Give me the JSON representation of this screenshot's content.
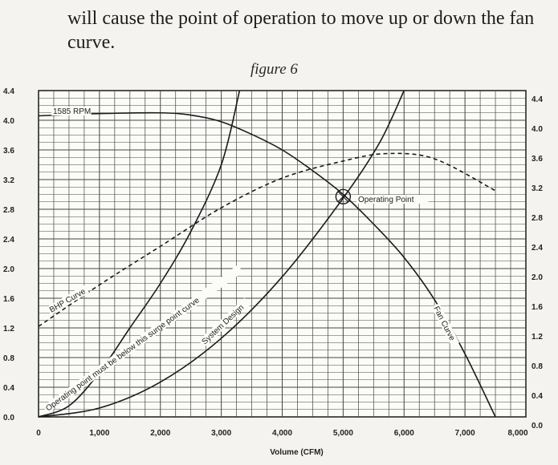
{
  "intro_text": "will cause the point of operation to move up or down the fan curve.",
  "figure_caption": "figure 6",
  "chart_data": {
    "type": "line",
    "xlabel": "Volume (CFM)",
    "ylabel": "",
    "xlim": [
      0,
      8000
    ],
    "ylim": [
      0,
      4.4
    ],
    "grid": true,
    "x_ticks": [
      0,
      1000,
      2000,
      3000,
      4000,
      5000,
      6000,
      7000,
      8000
    ],
    "x_tick_labels": [
      "0",
      "1,000",
      "2,000",
      "3,000",
      "4,000",
      "5,000",
      "6,000",
      "7,000",
      "8,000"
    ],
    "y_ticks": [
      0,
      0.4,
      0.8,
      1.2,
      1.6,
      2.0,
      2.4,
      2.8,
      3.2,
      3.6,
      4.0,
      4.4
    ],
    "y_tick_labels_left": [
      "0.0",
      "0.4",
      "0.8",
      "1.2",
      "1.6",
      "2.0",
      "2.4",
      "2.8",
      "3.2",
      "3.6",
      "4.0",
      "4.4"
    ],
    "y_tick_labels_right": [
      "0.0",
      "0.4",
      "0.8",
      "1.2",
      "1.6",
      "2.0",
      "2.4",
      "2.8",
      "3.2",
      "3.6",
      "4.0",
      "4.4"
    ],
    "series": [
      {
        "name": "Fan Curve",
        "style": "solid",
        "x": [
          0,
          1000,
          2000,
          2500,
          3000,
          3500,
          4000,
          4500,
          5000,
          5500,
          6000,
          6500,
          7000,
          7500
        ],
        "y": [
          4.06,
          4.09,
          4.1,
          4.07,
          3.98,
          3.81,
          3.6,
          3.32,
          3.0,
          2.6,
          2.15,
          1.58,
          0.85,
          0.0
        ]
      },
      {
        "name": "System Design",
        "style": "solid",
        "x": [
          0,
          1000,
          2000,
          3000,
          4000,
          5000,
          5600,
          6000
        ],
        "y": [
          0.0,
          0.12,
          0.47,
          1.06,
          1.89,
          2.95,
          3.7,
          4.4
        ]
      },
      {
        "name": "Operating point must be below this surge point curve",
        "style": "solid",
        "x": [
          0,
          500,
          1000,
          1500,
          2000,
          2500,
          3000,
          3300
        ],
        "y": [
          0.0,
          0.15,
          0.6,
          1.2,
          1.8,
          2.5,
          3.4,
          4.4
        ]
      },
      {
        "name": "BHP Curve",
        "style": "dashed",
        "x": [
          0,
          1000,
          2000,
          3000,
          4000,
          5000,
          5700,
          6500,
          7500
        ],
        "y": [
          1.22,
          1.78,
          2.3,
          2.82,
          3.22,
          3.45,
          3.55,
          3.48,
          3.05
        ]
      }
    ],
    "annotations": [
      {
        "text": "1585 RPM",
        "x": 600,
        "y": 4.06
      },
      {
        "text": "Operating Point",
        "x": 5000,
        "y": 2.97
      },
      {
        "text": "BHP Curve",
        "x": 0,
        "y": 1.22
      },
      {
        "text": "Operating point must be below this surge point curve",
        "x": 0,
        "y": 0
      },
      {
        "text": "System Design",
        "x": 2600,
        "y": 1.0
      },
      {
        "text": "Fan Curve",
        "x": 6700,
        "y": 1.2
      }
    ],
    "operating_point": {
      "x": 5000,
      "y": 2.97
    }
  }
}
